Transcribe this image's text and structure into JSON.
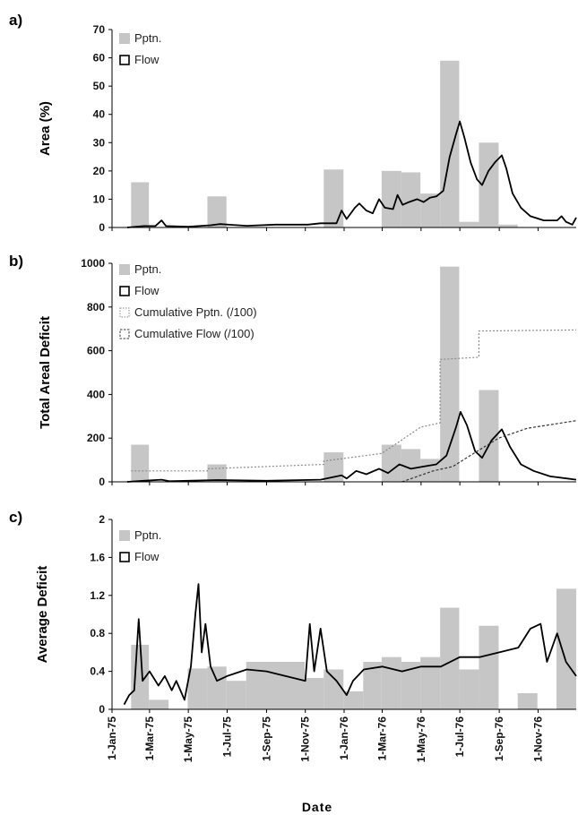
{
  "chart_data": [
    {
      "type": "bar",
      "panel_label": "a)",
      "ylabel": "Area (%)",
      "ylim": [
        0,
        70
      ],
      "yticks": [
        "0",
        "10",
        "20",
        "30",
        "40",
        "50",
        "60",
        "70"
      ],
      "legend": [
        "Pptn.",
        "Flow"
      ],
      "series": [
        {
          "name": "Pptn.",
          "kind": "bar",
          "bars": [
            {
              "start": "1975-01-31",
              "end": "1975-02-28",
              "value": 16
            },
            {
              "start": "1975-05-31",
              "end": "1975-06-30",
              "value": 11
            },
            {
              "start": "1975-11-30",
              "end": "1975-12-31",
              "value": 20.5
            },
            {
              "start": "1976-02-29",
              "end": "1976-03-31",
              "value": 20
            },
            {
              "start": "1976-03-31",
              "end": "1976-04-30",
              "value": 19.5
            },
            {
              "start": "1976-04-30",
              "end": "1976-05-31",
              "value": 12
            },
            {
              "start": "1976-05-31",
              "end": "1976-06-30",
              "value": 59
            },
            {
              "start": "1976-06-30",
              "end": "1976-07-31",
              "value": 2
            },
            {
              "start": "1976-07-31",
              "end": "1976-08-31",
              "value": 30
            },
            {
              "start": "1976-08-31",
              "end": "1976-09-30",
              "value": 1
            }
          ]
        },
        {
          "name": "Flow",
          "kind": "line",
          "points": [
            [
              "1975-01-25",
              0
            ],
            [
              "1975-02-20",
              0.5
            ],
            [
              "1975-03-10",
              0.5
            ],
            [
              "1975-03-20",
              2.5
            ],
            [
              "1975-03-27",
              0.5
            ],
            [
              "1975-05-01",
              0.3
            ],
            [
              "1975-06-05",
              0.8
            ],
            [
              "1975-06-20",
              1.2
            ],
            [
              "1975-08-01",
              0.6
            ],
            [
              "1975-09-15",
              1
            ],
            [
              "1975-11-05",
              1
            ],
            [
              "1975-11-25",
              1.5
            ],
            [
              "1975-12-20",
              1.5
            ],
            [
              "1975-12-28",
              6
            ],
            [
              "1976-01-05",
              3
            ],
            [
              "1976-01-18",
              7
            ],
            [
              "1976-01-25",
              8.5
            ],
            [
              "1976-02-05",
              6
            ],
            [
              "1976-02-15",
              5
            ],
            [
              "1976-02-25",
              10
            ],
            [
              "1976-03-05",
              7
            ],
            [
              "1976-03-18",
              6.5
            ],
            [
              "1976-03-25",
              11.5
            ],
            [
              "1976-04-02",
              8
            ],
            [
              "1976-04-12",
              9
            ],
            [
              "1976-04-25",
              10
            ],
            [
              "1976-05-05",
              9
            ],
            [
              "1976-05-15",
              10.5
            ],
            [
              "1976-05-25",
              11
            ],
            [
              "1976-06-05",
              13
            ],
            [
              "1976-06-15",
              25
            ],
            [
              "1976-06-25",
              33
            ],
            [
              "1976-07-01",
              37.5
            ],
            [
              "1976-07-08",
              32
            ],
            [
              "1976-07-18",
              23
            ],
            [
              "1976-07-28",
              17
            ],
            [
              "1976-08-05",
              15
            ],
            [
              "1976-08-15",
              20
            ],
            [
              "1976-08-25",
              23
            ],
            [
              "1976-09-05",
              25.5
            ],
            [
              "1976-09-12",
              21
            ],
            [
              "1976-09-22",
              12
            ],
            [
              "1976-10-05",
              7
            ],
            [
              "1976-10-20",
              4
            ],
            [
              "1976-11-10",
              2.5
            ],
            [
              "1976-12-01",
              2.5
            ],
            [
              "1976-12-08",
              4
            ],
            [
              "1976-12-15",
              2
            ],
            [
              "1976-12-25",
              1
            ],
            [
              "1976-12-31",
              3.5
            ]
          ]
        }
      ]
    },
    {
      "type": "bar",
      "panel_label": "b)",
      "ylabel": "Total Areal Deficit",
      "ylim": [
        0,
        1000
      ],
      "yticks": [
        "0",
        "200",
        "400",
        "600",
        "800",
        "1000"
      ],
      "legend": [
        "Pptn.",
        "Flow",
        "Cumulative Pptn. (/100)",
        "Cumulative Flow (/100)"
      ],
      "series": [
        {
          "name": "Pptn.",
          "kind": "bar",
          "bars": [
            {
              "start": "1975-01-31",
              "end": "1975-02-28",
              "value": 170
            },
            {
              "start": "1975-05-31",
              "end": "1975-06-30",
              "value": 80
            },
            {
              "start": "1975-11-30",
              "end": "1975-12-31",
              "value": 135
            },
            {
              "start": "1976-02-29",
              "end": "1976-03-31",
              "value": 170
            },
            {
              "start": "1976-03-31",
              "end": "1976-04-30",
              "value": 150
            },
            {
              "start": "1976-04-30",
              "end": "1976-05-31",
              "value": 105
            },
            {
              "start": "1976-05-31",
              "end": "1976-06-30",
              "value": 985
            },
            {
              "start": "1976-07-31",
              "end": "1976-08-31",
              "value": 420
            }
          ]
        },
        {
          "name": "Flow",
          "kind": "line",
          "points": [
            [
              "1975-01-25",
              0
            ],
            [
              "1975-02-20",
              5
            ],
            [
              "1975-03-20",
              10
            ],
            [
              "1975-04-01",
              3
            ],
            [
              "1975-06-15",
              8
            ],
            [
              "1975-09-01",
              5
            ],
            [
              "1975-11-25",
              10
            ],
            [
              "1975-12-28",
              30
            ],
            [
              "1976-01-05",
              15
            ],
            [
              "1976-01-20",
              50
            ],
            [
              "1976-02-05",
              35
            ],
            [
              "1976-02-25",
              60
            ],
            [
              "1976-03-10",
              40
            ],
            [
              "1976-03-28",
              80
            ],
            [
              "1976-04-15",
              60
            ],
            [
              "1976-05-05",
              70
            ],
            [
              "1976-05-25",
              80
            ],
            [
              "1976-06-10",
              120
            ],
            [
              "1976-06-25",
              250
            ],
            [
              "1976-07-02",
              320
            ],
            [
              "1976-07-12",
              260
            ],
            [
              "1976-07-25",
              140
            ],
            [
              "1976-08-05",
              110
            ],
            [
              "1976-08-20",
              190
            ],
            [
              "1976-09-05",
              240
            ],
            [
              "1976-09-18",
              160
            ],
            [
              "1976-10-05",
              80
            ],
            [
              "1976-10-25",
              50
            ],
            [
              "1976-11-20",
              25
            ],
            [
              "1976-12-31",
              10
            ]
          ]
        },
        {
          "name": "Cumulative Pptn. (/100)",
          "kind": "step",
          "points": [
            [
              "1975-01-31",
              50
            ],
            [
              "1975-05-31",
              50
            ],
            [
              "1975-05-31",
              60
            ],
            [
              "1975-11-30",
              80
            ],
            [
              "1975-11-30",
              95
            ],
            [
              "1976-02-29",
              130
            ],
            [
              "1976-03-31",
              190
            ],
            [
              "1976-04-30",
              250
            ],
            [
              "1976-05-31",
              270
            ],
            [
              "1976-05-31",
              560
            ],
            [
              "1976-07-31",
              570
            ],
            [
              "1976-07-31",
              690
            ],
            [
              "1976-12-31",
              695
            ]
          ]
        },
        {
          "name": "Cumulative Flow (/100)",
          "kind": "line",
          "points": [
            [
              "1976-04-01",
              0
            ],
            [
              "1976-05-20",
              50
            ],
            [
              "1976-06-20",
              70
            ],
            [
              "1976-07-20",
              125
            ],
            [
              "1976-08-31",
              200
            ],
            [
              "1976-10-15",
              245
            ],
            [
              "1976-12-31",
              280
            ]
          ]
        }
      ]
    },
    {
      "type": "bar",
      "panel_label": "c)",
      "ylabel": "Average Deficit",
      "ylim": [
        0,
        2
      ],
      "yticks": [
        "0",
        "0.4",
        "0.8",
        "1.2",
        "1.6",
        "2"
      ],
      "legend": [
        "Pptn.",
        "Flow"
      ],
      "series": [
        {
          "name": "Pptn.",
          "kind": "bar",
          "bars": [
            {
              "start": "1975-01-31",
              "end": "1975-02-28",
              "value": 0.68
            },
            {
              "start": "1975-02-28",
              "end": "1975-03-31",
              "value": 0.1
            },
            {
              "start": "1975-04-30",
              "end": "1975-05-31",
              "value": 0.43
            },
            {
              "start": "1975-05-31",
              "end": "1975-06-30",
              "value": 0.45
            },
            {
              "start": "1975-06-30",
              "end": "1975-07-31",
              "value": 0.3
            },
            {
              "start": "1975-07-31",
              "end": "1975-10-31",
              "value": 0.5
            },
            {
              "start": "1975-10-31",
              "end": "1975-11-30",
              "value": 0.33
            },
            {
              "start": "1975-11-30",
              "end": "1975-12-31",
              "value": 0.42
            },
            {
              "start": "1975-12-31",
              "end": "1976-01-31",
              "value": 0.19
            },
            {
              "start": "1976-01-31",
              "end": "1976-02-29",
              "value": 0.5
            },
            {
              "start": "1976-02-29",
              "end": "1976-03-31",
              "value": 0.55
            },
            {
              "start": "1976-03-31",
              "end": "1976-04-30",
              "value": 0.5
            },
            {
              "start": "1976-04-30",
              "end": "1976-05-31",
              "value": 0.55
            },
            {
              "start": "1976-05-31",
              "end": "1976-06-30",
              "value": 1.07
            },
            {
              "start": "1976-06-30",
              "end": "1976-07-31",
              "value": 0.42
            },
            {
              "start": "1976-07-31",
              "end": "1976-08-31",
              "value": 0.88
            },
            {
              "start": "1976-09-30",
              "end": "1976-10-31",
              "value": 0.17
            },
            {
              "start": "1976-11-30",
              "end": "1976-12-31",
              "value": 1.27
            }
          ]
        },
        {
          "name": "Flow",
          "kind": "line",
          "points": [
            [
              "1975-01-20",
              0.05
            ],
            [
              "1975-01-28",
              0.15
            ],
            [
              "1975-02-05",
              0.2
            ],
            [
              "1975-02-12",
              0.95
            ],
            [
              "1975-02-18",
              0.3
            ],
            [
              "1975-03-01",
              0.4
            ],
            [
              "1975-03-15",
              0.25
            ],
            [
              "1975-03-25",
              0.35
            ],
            [
              "1975-04-05",
              0.2
            ],
            [
              "1975-04-12",
              0.3
            ],
            [
              "1975-04-25",
              0.1
            ],
            [
              "1975-05-05",
              0.45
            ],
            [
              "1975-05-12",
              1.0
            ],
            [
              "1975-05-17",
              1.32
            ],
            [
              "1975-05-22",
              0.6
            ],
            [
              "1975-05-28",
              0.9
            ],
            [
              "1975-06-05",
              0.45
            ],
            [
              "1975-06-15",
              0.3
            ],
            [
              "1975-07-01",
              0.35
            ],
            [
              "1975-08-01",
              0.42
            ],
            [
              "1975-09-01",
              0.4
            ],
            [
              "1975-10-01",
              0.35
            ],
            [
              "1975-11-01",
              0.3
            ],
            [
              "1975-11-08",
              0.9
            ],
            [
              "1975-11-15",
              0.4
            ],
            [
              "1975-11-25",
              0.85
            ],
            [
              "1975-12-05",
              0.4
            ],
            [
              "1975-12-20",
              0.3
            ],
            [
              "1976-01-05",
              0.15
            ],
            [
              "1976-01-15",
              0.3
            ],
            [
              "1976-02-01",
              0.42
            ],
            [
              "1976-03-01",
              0.45
            ],
            [
              "1976-04-01",
              0.4
            ],
            [
              "1976-05-01",
              0.45
            ],
            [
              "1976-06-01",
              0.45
            ],
            [
              "1976-07-01",
              0.55
            ],
            [
              "1976-08-01",
              0.55
            ],
            [
              "1976-09-01",
              0.6
            ],
            [
              "1976-10-01",
              0.65
            ],
            [
              "1976-10-20",
              0.85
            ],
            [
              "1976-11-05",
              0.9
            ],
            [
              "1976-11-15",
              0.5
            ],
            [
              "1976-12-01",
              0.8
            ],
            [
              "1976-12-15",
              0.5
            ],
            [
              "1976-12-31",
              0.35
            ]
          ]
        }
      ]
    }
  ],
  "x_axis": {
    "label": "Date",
    "range": [
      "1975-01-01",
      "1976-12-31"
    ],
    "ticks": [
      {
        "date": "1975-01-01",
        "label": "1-Jan-75"
      },
      {
        "date": "1975-03-01",
        "label": "1-Mar-75"
      },
      {
        "date": "1975-05-01",
        "label": "1-May-75"
      },
      {
        "date": "1975-07-01",
        "label": "1-Jul-75"
      },
      {
        "date": "1975-09-01",
        "label": "1-Sep-75"
      },
      {
        "date": "1975-11-01",
        "label": "1-Nov-75"
      },
      {
        "date": "1976-01-01",
        "label": "1-Jan-76"
      },
      {
        "date": "1976-03-01",
        "label": "1-Mar-76"
      },
      {
        "date": "1976-05-01",
        "label": "1-May-76"
      },
      {
        "date": "1976-07-01",
        "label": "1-Jul-76"
      },
      {
        "date": "1976-09-01",
        "label": "1-Sep-76"
      },
      {
        "date": "1976-11-01",
        "label": "1-Nov-76"
      }
    ]
  },
  "colors": {
    "bar": "#c6c6c6",
    "flow": "#000000",
    "cumulative_pptn": "#8a8a8a",
    "cumulative_flow": "#333333"
  }
}
